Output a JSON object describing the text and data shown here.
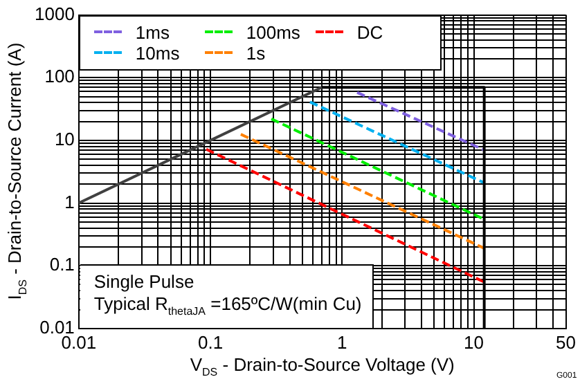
{
  "chart_data": {
    "type": "line",
    "xlabel": "V$_{DS}$ - Drain-to-Source Voltage (V)",
    "ylabel": "I$_{DS}$ - Drain-to-Source Current (A)",
    "log": "xy",
    "grid": true,
    "legend": "top left",
    "marker": "none",
    "xlim": [
      0.01,
      50
    ],
    "ylim": [
      0.01,
      1000
    ],
    "xticks": [
      0.01,
      {
        "value": 0.02,
        "label": null
      },
      {
        "value": 0.03,
        "label": null
      },
      {
        "value": 0.04,
        "label": null
      },
      {
        "value": 0.05,
        "label": null
      },
      {
        "value": 0.06,
        "label": null
      },
      {
        "value": 0.07,
        "label": null
      },
      {
        "value": 0.08,
        "label": null
      },
      {
        "value": 0.09,
        "label": null
      },
      0.1,
      {
        "value": 0.2,
        "label": null
      },
      {
        "value": 0.3,
        "label": null
      },
      {
        "value": 0.4,
        "label": null
      },
      {
        "value": 0.5,
        "label": null
      },
      {
        "value": 0.6,
        "label": null
      },
      {
        "value": 0.7,
        "label": null
      },
      {
        "value": 0.8,
        "label": null
      },
      {
        "value": 0.9,
        "label": null
      },
      1,
      {
        "value": 2,
        "label": null
      },
      {
        "value": 3,
        "label": null
      },
      {
        "value": 4,
        "label": null
      },
      {
        "value": 5,
        "label": null
      },
      {
        "value": 6,
        "label": null
      },
      {
        "value": 7,
        "label": null
      },
      {
        "value": 8,
        "label": null
      },
      {
        "value": 9,
        "label": null
      },
      10,
      {
        "value": 20,
        "label": null
      },
      {
        "value": 30,
        "label": null
      },
      {
        "value": 40,
        "label": null
      },
      50
    ],
    "yticks": [
      0.01,
      {
        "value": 0.02,
        "label": null
      },
      {
        "value": 0.03,
        "label": null
      },
      {
        "value": 0.04,
        "label": null
      },
      {
        "value": 0.05,
        "label": null
      },
      {
        "value": 0.06,
        "label": null
      },
      {
        "value": 0.07,
        "label": null
      },
      {
        "value": 0.08,
        "label": null
      },
      {
        "value": 0.09,
        "label": null
      },
      0.1,
      {
        "value": 0.2,
        "label": null
      },
      {
        "value": 0.3,
        "label": null
      },
      {
        "value": 0.4,
        "label": null
      },
      {
        "value": 0.5,
        "label": null
      },
      {
        "value": 0.6,
        "label": null
      },
      {
        "value": 0.7,
        "label": null
      },
      {
        "value": 0.8,
        "label": null
      },
      {
        "value": 0.9,
        "label": null
      },
      1,
      {
        "value": 2,
        "label": null
      },
      {
        "value": 3,
        "label": null
      },
      {
        "value": 4,
        "label": null
      },
      {
        "value": 5,
        "label": null
      },
      {
        "value": 6,
        "label": null
      },
      {
        "value": 7,
        "label": null
      },
      {
        "value": 8,
        "label": null
      },
      {
        "value": 9,
        "label": null
      },
      10,
      {
        "value": 20,
        "label": null
      },
      {
        "value": 30,
        "label": null
      },
      {
        "value": 40,
        "label": null
      },
      {
        "value": 50,
        "label": null
      },
      {
        "value": 60,
        "label": null
      },
      {
        "value": 70,
        "label": null
      },
      {
        "value": 80,
        "label": null
      },
      {
        "value": 90,
        "label": null
      },
      100,
      {
        "value": 200,
        "label": null
      },
      {
        "value": 300,
        "label": null
      },
      {
        "value": 400,
        "label": null
      },
      {
        "value": 500,
        "label": null
      },
      {
        "value": 600,
        "label": null
      },
      {
        "value": 700,
        "label": null
      },
      {
        "value": 800,
        "label": null
      },
      {
        "value": 900,
        "label": null
      },
      1000
    ],
    "series": [
      {
        "color": "#404040",
        "line_style": "solid",
        "x": [
          0.01,
          0.7
        ],
        "values": [
          1,
          70
        ]
      },
      {
        "color": "#000000",
        "line_style": "solid",
        "x": [
          0.7,
          12,
          12
        ],
        "values": [
          70,
          70,
          0.01
        ]
      },
      {
        "name": "1ms",
        "color": "#7f60e0",
        "line_style": "dashed",
        "x": [
          1.3,
          12
        ],
        "values": [
          58,
          7
        ]
      },
      {
        "name": "10ms",
        "color": "#00b0f0",
        "line_style": "dashed",
        "x": [
          0.57,
          12
        ],
        "values": [
          41,
          2.1
        ]
      },
      {
        "name": "100ms",
        "color": "#00ee00",
        "line_style": "dashed",
        "x": [
          0.29,
          12
        ],
        "values": [
          22,
          0.55
        ]
      },
      {
        "name": "1s",
        "color": "#ff8000",
        "line_style": "dashed",
        "x": [
          0.17,
          12
        ],
        "values": [
          12.5,
          0.19
        ]
      },
      {
        "name": "DC",
        "color": "#ff0000",
        "line_style": "dashed",
        "x": [
          0.093,
          12
        ],
        "values": [
          7.2,
          0.055
        ]
      }
    ],
    "annotations": [
      "Single Pulse",
      "Typical R$_{thetaJA}$ =165ºC/W(min Cu)",
      "G001"
    ]
  }
}
